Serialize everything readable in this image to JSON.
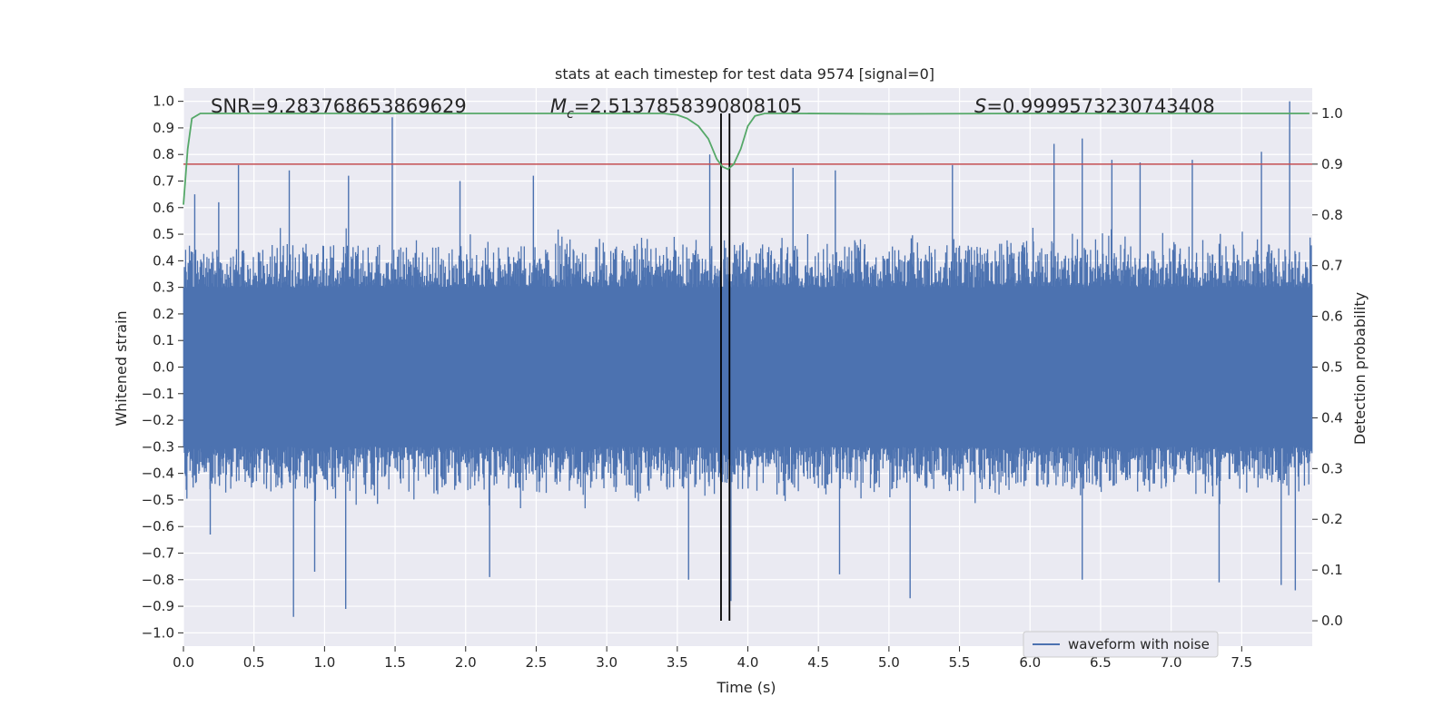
{
  "chart_data": {
    "type": "line",
    "title": "stats at each timestep for test data 9574 [signal=0]",
    "xlabel": "Time (s)",
    "ylabel": "Whitened strain",
    "y2label": "Detection probability",
    "xlim": [
      0,
      8
    ],
    "ylim": [
      -1.05,
      1.05
    ],
    "y2lim": [
      -0.05,
      1.05
    ],
    "x_ticks": [
      0.0,
      0.5,
      1.0,
      1.5,
      2.0,
      2.5,
      3.0,
      3.5,
      4.0,
      4.5,
      5.0,
      5.5,
      6.0,
      6.5,
      7.0,
      7.5
    ],
    "y_ticks": [
      1.0,
      0.9,
      0.8,
      0.7,
      0.6,
      0.5,
      0.4,
      0.3,
      0.2,
      0.1,
      0.0,
      -0.1,
      -0.2,
      -0.3,
      -0.4,
      -0.5,
      -0.6,
      -0.7,
      -0.8,
      -0.9,
      -1.0
    ],
    "y2_ticks": [
      1.0,
      0.9,
      0.8,
      0.7,
      0.6,
      0.5,
      0.4,
      0.3,
      0.2,
      0.1,
      0.0
    ],
    "annotations": {
      "snr": "SNR=9.283768653869629",
      "mc_symbol": "M",
      "mc_sub": "c",
      "mc_value": "=2.5137858390808105",
      "s_symbol": "S",
      "s_value": "=0.9999573230743408"
    },
    "series": [
      {
        "name": "waveform with noise",
        "color": "#4c72b0",
        "description_of_envelope": "dense noise filling roughly -0.45..0.45 with spikes up to ±0.95",
        "spikes": [
          {
            "x": 0.08,
            "y": 0.65
          },
          {
            "x": 0.25,
            "y": 0.62
          },
          {
            "x": 0.39,
            "y": 0.76
          },
          {
            "x": 0.75,
            "y": 0.74
          },
          {
            "x": 1.17,
            "y": 0.72
          },
          {
            "x": 1.48,
            "y": 0.94
          },
          {
            "x": 1.96,
            "y": 0.7
          },
          {
            "x": 2.48,
            "y": 0.72
          },
          {
            "x": 3.73,
            "y": 0.8
          },
          {
            "x": 4.32,
            "y": 0.75
          },
          {
            "x": 4.62,
            "y": 0.74
          },
          {
            "x": 5.45,
            "y": 0.76
          },
          {
            "x": 6.17,
            "y": 0.84
          },
          {
            "x": 6.37,
            "y": 0.86
          },
          {
            "x": 6.58,
            "y": 0.78
          },
          {
            "x": 6.78,
            "y": 0.77
          },
          {
            "x": 7.15,
            "y": 0.78
          },
          {
            "x": 7.64,
            "y": 0.81
          },
          {
            "x": 7.84,
            "y": 1.0
          },
          {
            "x": 0.19,
            "y": -0.63
          },
          {
            "x": 0.78,
            "y": -0.94
          },
          {
            "x": 0.93,
            "y": -0.77
          },
          {
            "x": 1.15,
            "y": -0.91
          },
          {
            "x": 2.17,
            "y": -0.79
          },
          {
            "x": 3.58,
            "y": -0.8
          },
          {
            "x": 3.88,
            "y": -0.88
          },
          {
            "x": 4.65,
            "y": -0.78
          },
          {
            "x": 5.15,
            "y": -0.87
          },
          {
            "x": 6.37,
            "y": -0.8
          },
          {
            "x": 7.34,
            "y": -0.81
          },
          {
            "x": 7.78,
            "y": -0.82
          },
          {
            "x": 7.88,
            "y": -0.84
          }
        ]
      },
      {
        "name": "",
        "axis": "y2",
        "color": "#55a868",
        "x": [
          0.0,
          0.03,
          0.06,
          0.12,
          0.2,
          3.4,
          3.5,
          3.57,
          3.65,
          3.72,
          3.78,
          3.82,
          3.86,
          3.9,
          3.95,
          4.0,
          4.05,
          4.12,
          4.3,
          5.0,
          6.0,
          7.0,
          7.5,
          7.98
        ],
        "y": [
          0.82,
          0.93,
          0.99,
          1.0,
          1.0,
          1.0,
          0.997,
          0.99,
          0.975,
          0.95,
          0.91,
          0.895,
          0.89,
          0.9,
          0.93,
          0.975,
          0.995,
          1.0,
          1.0,
          0.999,
          1.0,
          1.0,
          1.0,
          1.0
        ]
      }
    ],
    "hlines": [
      {
        "y2": 0.9,
        "color": "#c44e52"
      }
    ],
    "vlines": [
      {
        "x": 3.81,
        "color": "#000000"
      },
      {
        "x": 3.87,
        "color": "#000000"
      }
    ],
    "legend": {
      "position": "bottom-right",
      "entries": [
        "waveform with noise"
      ]
    },
    "grid": true
  }
}
